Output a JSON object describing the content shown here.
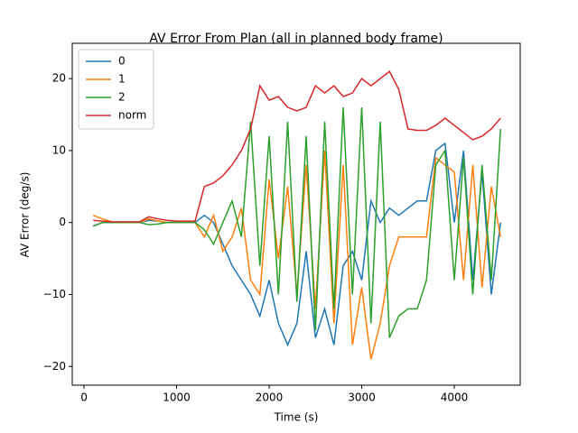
{
  "chart_data": {
    "type": "line",
    "title": "AV Error From Plan (all in planned body frame)",
    "x_label": "Time (s)",
    "y_label": "AV Error (deg/s)",
    "x": [
      100,
      200,
      300,
      400,
      500,
      600,
      700,
      800,
      900,
      1000,
      1100,
      1200,
      1300,
      1400,
      1500,
      1600,
      1700,
      1800,
      1900,
      2000,
      2100,
      2200,
      2300,
      2400,
      2500,
      2600,
      2700,
      2800,
      2900,
      3000,
      3100,
      3200,
      3300,
      3400,
      3500,
      3600,
      3700,
      3800,
      3900,
      4000,
      4100,
      4200,
      4300,
      4400,
      4500
    ],
    "series": [
      {
        "name": "0",
        "color": "#1f77b4",
        "values": [
          -0.5,
          0,
          0,
          0,
          0,
          0,
          0.3,
          0.2,
          0,
          0,
          0,
          0,
          1,
          0,
          -3,
          -6,
          -8,
          -10,
          -13,
          -8,
          -14,
          -17,
          -14,
          -4,
          -16,
          -12,
          -17,
          -6,
          -4,
          -8,
          3,
          0,
          2,
          1,
          2,
          3,
          3,
          10,
          11,
          0,
          10,
          -8,
          7,
          -10,
          0
        ]
      },
      {
        "name": "1",
        "color": "#ff7f0e",
        "values": [
          1,
          0.5,
          0.1,
          0,
          0,
          0,
          0.5,
          0.2,
          0,
          0,
          0,
          0,
          -2,
          1,
          -4,
          -2,
          2,
          -8,
          -10,
          6,
          -5,
          5,
          -10,
          8,
          -12,
          10,
          -14,
          8,
          -17,
          -9,
          -19,
          -14,
          -6,
          -2,
          -2,
          -2,
          -2,
          9,
          8,
          7,
          -8,
          8,
          -9,
          5,
          -2
        ]
      },
      {
        "name": "2",
        "color": "#2ca02c",
        "values": [
          -0.5,
          0,
          0,
          0,
          0,
          0,
          -0.3,
          -0.2,
          0,
          0,
          0,
          0,
          -1,
          -3,
          0,
          3,
          -2,
          14,
          -6,
          12,
          -10,
          14,
          -11,
          12,
          -15,
          14,
          -12,
          16,
          -10,
          16,
          -14,
          14,
          -16,
          -13,
          -12,
          -12,
          -8,
          8,
          10,
          -8,
          9,
          -10,
          8,
          -8,
          13
        ]
      },
      {
        "name": "norm",
        "color": "#d62728",
        "values": [
          0.3,
          0.2,
          0.1,
          0.1,
          0.1,
          0.1,
          0.8,
          0.5,
          0.3,
          0.2,
          0.2,
          0.2,
          5,
          5.5,
          6.5,
          8,
          10,
          13,
          19,
          17,
          17.5,
          16,
          15.5,
          16,
          19,
          18,
          19,
          17.5,
          18,
          20,
          19,
          20,
          21,
          18.5,
          13,
          12.8,
          12.8,
          13.5,
          14.5,
          13.5,
          12.5,
          11.5,
          12,
          13,
          14.5
        ]
      }
    ],
    "xlim": [
      -127,
      4712
    ],
    "ylim": [
      -22.6,
      24.9
    ],
    "xticks": [
      0,
      1000,
      2000,
      3000,
      4000
    ],
    "yticks": [
      {
        "value": -20,
        "label": "−20"
      },
      {
        "value": -10,
        "label": "−10"
      },
      0,
      10,
      20
    ],
    "legend": "upper left"
  }
}
